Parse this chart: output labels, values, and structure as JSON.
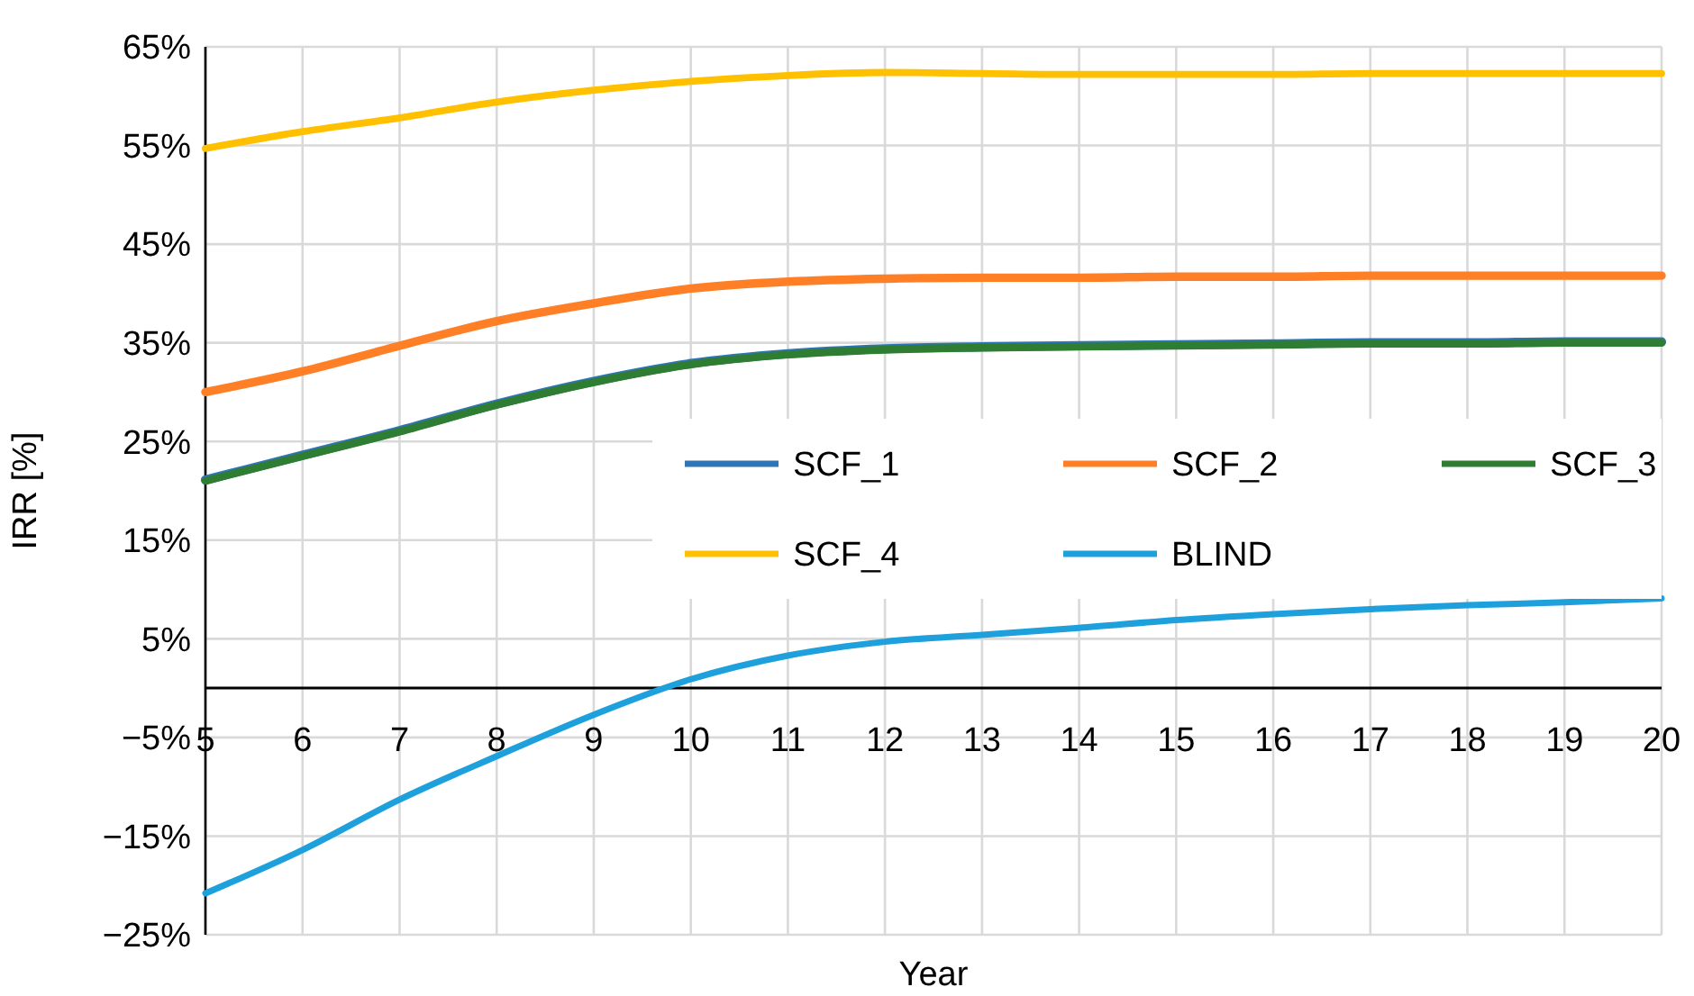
{
  "chart_data": {
    "type": "line",
    "xlabel": "Year",
    "ylabel": "IRR [%]",
    "x": [
      5,
      6,
      7,
      8,
      9,
      10,
      11,
      12,
      13,
      14,
      15,
      16,
      17,
      18,
      19,
      20
    ],
    "xlim": [
      5,
      20
    ],
    "xticks": [
      5,
      6,
      7,
      8,
      9,
      10,
      11,
      12,
      13,
      14,
      15,
      16,
      17,
      18,
      19,
      20
    ],
    "ylim": [
      -25,
      65
    ],
    "yticks": [
      {
        "value": -25,
        "label": "−25%"
      },
      {
        "value": -15,
        "label": "−15%"
      },
      {
        "value": -5,
        "label": "−5%"
      },
      {
        "value": 5,
        "label": "5%"
      },
      {
        "value": 15,
        "label": "15%"
      },
      {
        "value": 25,
        "label": "25%"
      },
      {
        "value": 35,
        "label": "35%"
      },
      {
        "value": 45,
        "label": "45%"
      },
      {
        "value": 55,
        "label": "55%"
      },
      {
        "value": 65,
        "label": "65%"
      }
    ],
    "grid": true,
    "legend": "right",
    "marker": "none",
    "line_style": "solid",
    "series": [
      {
        "name": "SCF_1",
        "color": "#2e75b6",
        "values": [
          21.1,
          23.6,
          26.1,
          28.8,
          31.1,
          32.9,
          33.9,
          34.4,
          34.6,
          34.7,
          34.8,
          34.9,
          35,
          35,
          35.1,
          35.1
        ]
      },
      {
        "name": "SCF_2",
        "color": "#ff7f27",
        "values": [
          30,
          32.1,
          34.7,
          37.2,
          39,
          40.5,
          41.2,
          41.5,
          41.6,
          41.6,
          41.7,
          41.7,
          41.8,
          41.8,
          41.8,
          41.8
        ]
      },
      {
        "name": "SCF_3",
        "color": "#2e7d32",
        "values": [
          21,
          23.5,
          26,
          28.7,
          31,
          32.8,
          33.8,
          34.3,
          34.5,
          34.6,
          34.7,
          34.8,
          34.9,
          34.9,
          35,
          35
        ]
      },
      {
        "name": "SCF_4",
        "color": "#ffc000",
        "values": [
          54.7,
          56.4,
          57.8,
          59.4,
          60.6,
          61.5,
          62.1,
          62.4,
          62.3,
          62.2,
          62.2,
          62.2,
          62.3,
          62.3,
          62.3,
          62.3
        ]
      },
      {
        "name": "BLIND",
        "color": "#1ea0dc",
        "values": [
          -20.8,
          -16.4,
          -11.3,
          -6.9,
          -2.7,
          0.9,
          3.3,
          4.7,
          5.4,
          6.1,
          6.9,
          7.5,
          8,
          8.4,
          8.7,
          9.1
        ]
      }
    ]
  }
}
